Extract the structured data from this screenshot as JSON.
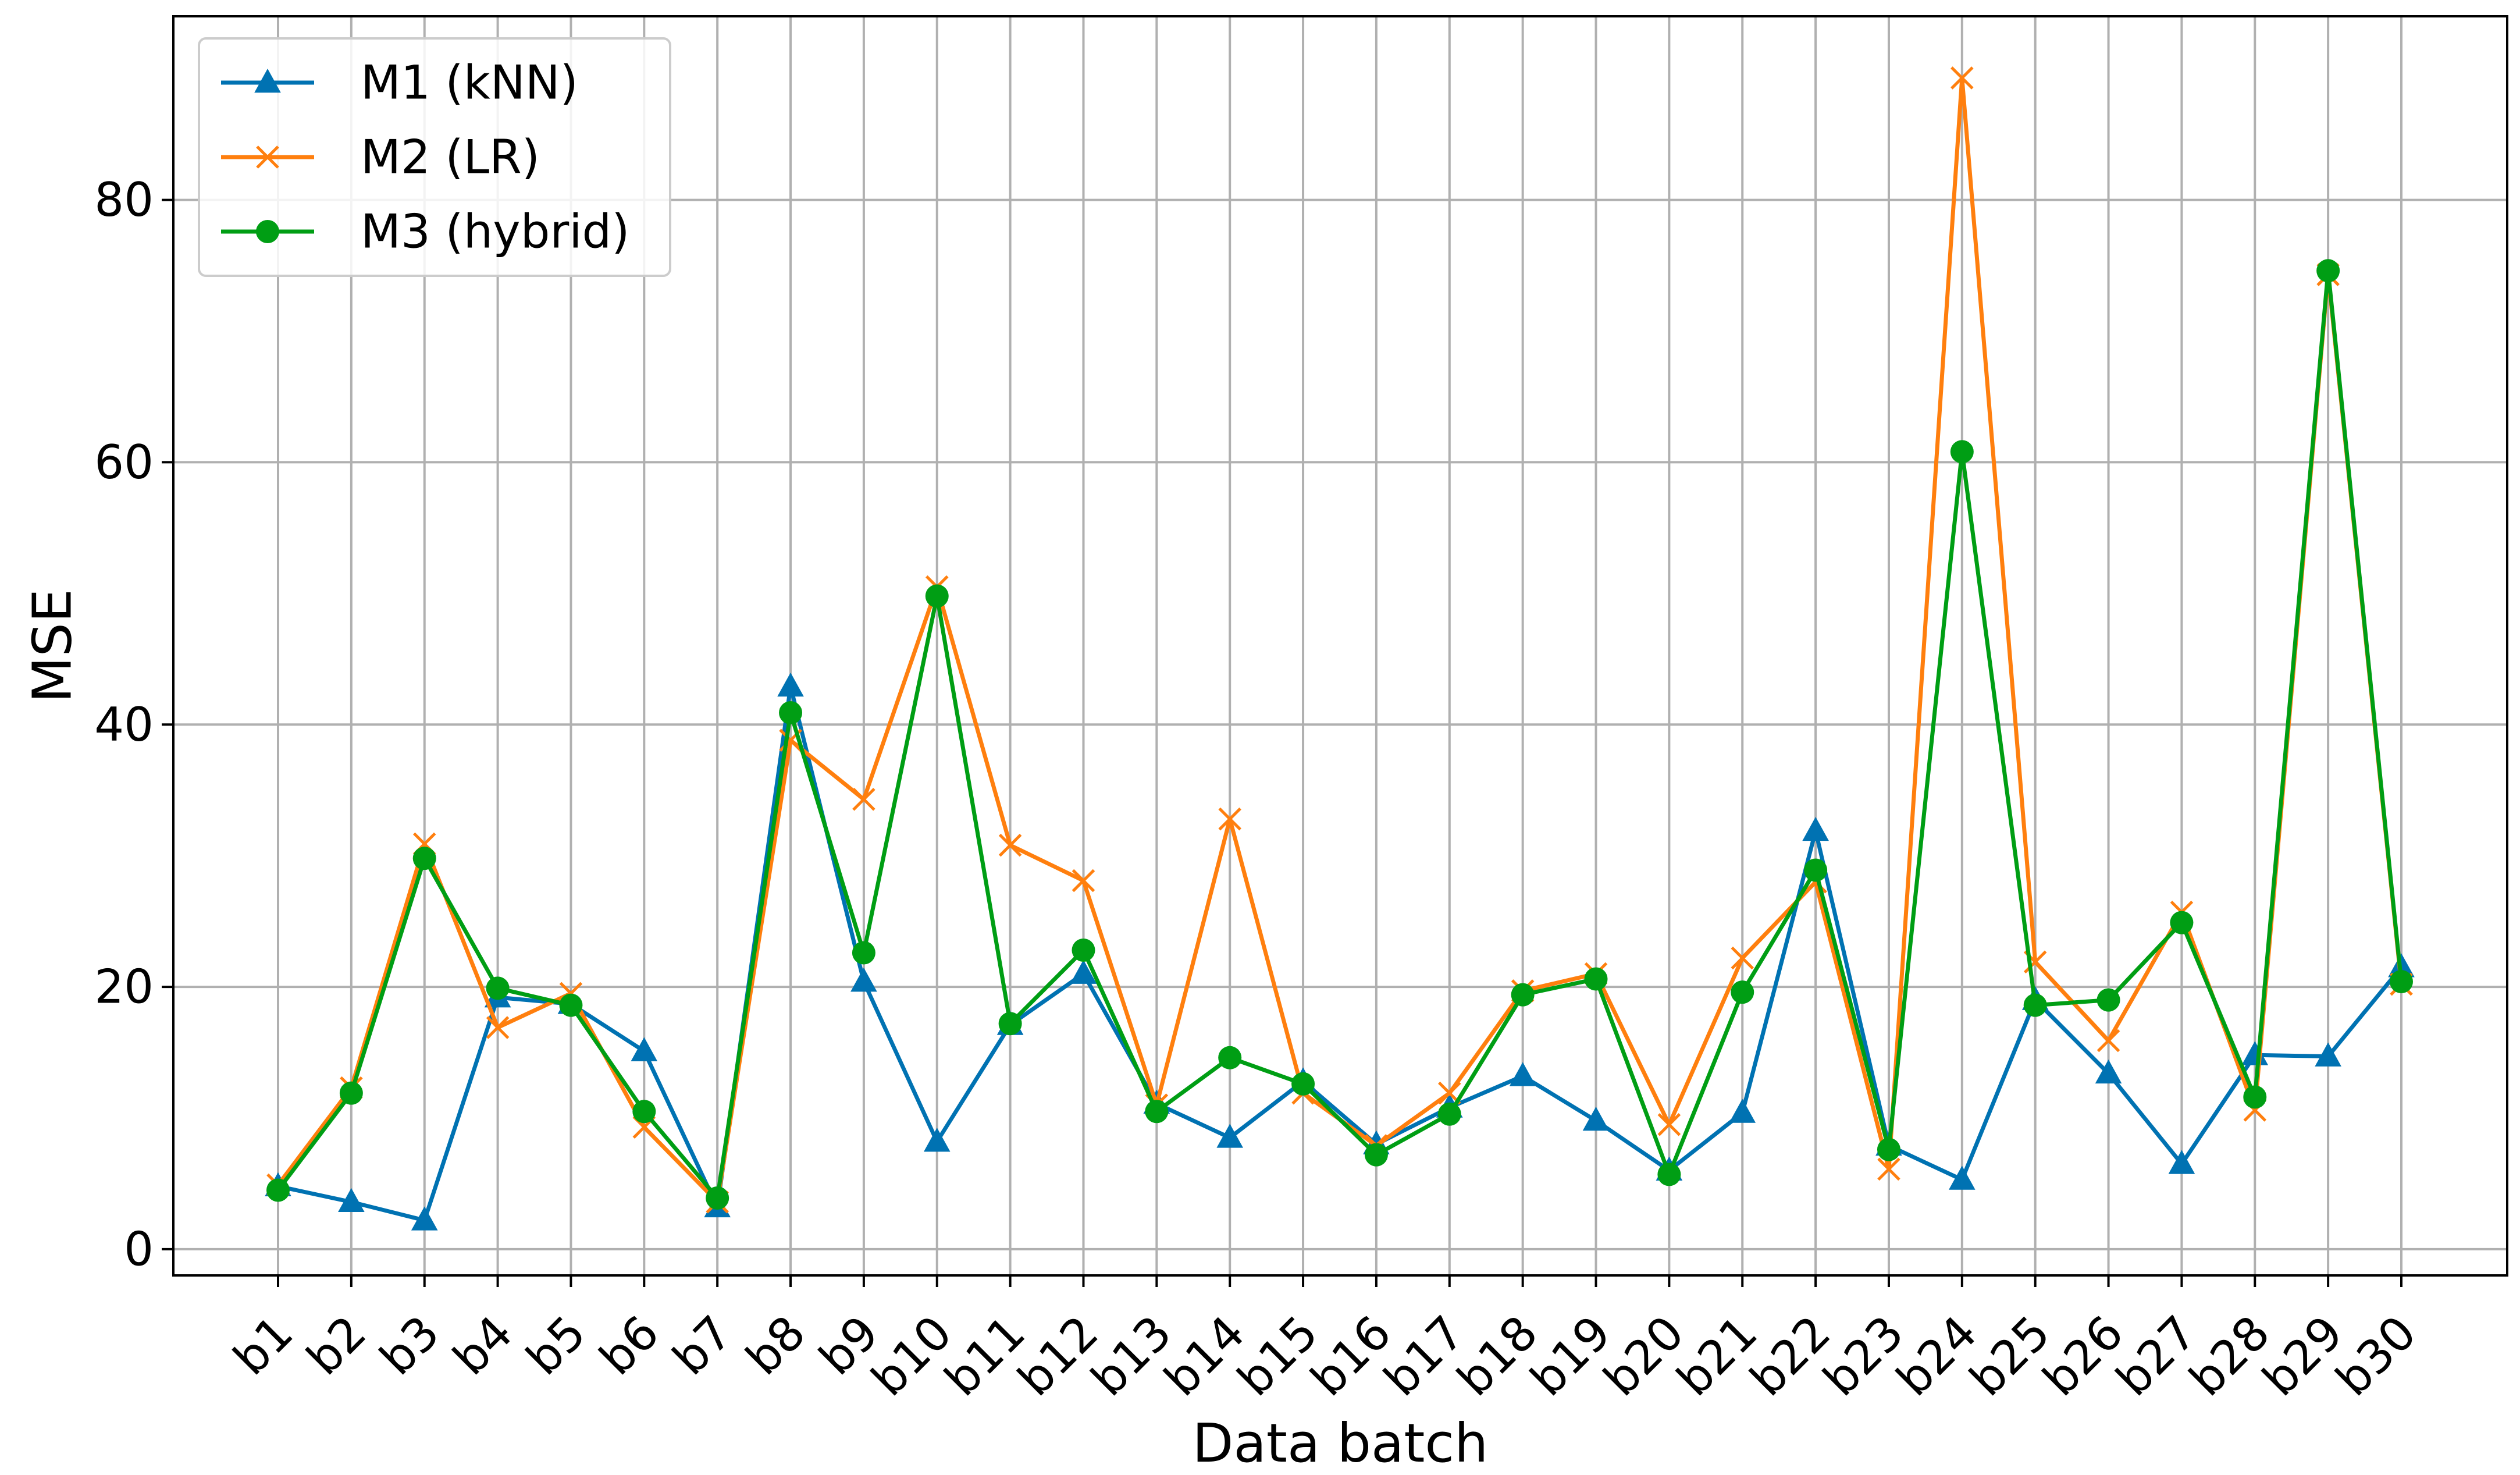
{
  "chart_data": {
    "type": "line",
    "title": "",
    "xlabel": "Data batch",
    "ylabel": "MSE",
    "ylim": [
      -2,
      94
    ],
    "yticks": [
      0,
      20,
      40,
      60,
      80
    ],
    "grid": true,
    "legend_position": "top-left",
    "categories": [
      "b1",
      "b2",
      "b3",
      "b4",
      "b5",
      "b6",
      "b7",
      "b8",
      "b9",
      "b10",
      "b11",
      "b12",
      "b13",
      "b14",
      "b15",
      "b16",
      "b17",
      "b18",
      "b19",
      "b20",
      "b21",
      "b22",
      "b23",
      "b24",
      "b25",
      "b26",
      "b27",
      "b28",
      "b29",
      "b30"
    ],
    "series": [
      {
        "name": "M1 (kNN)",
        "color": "#0072b2",
        "marker": "triangle",
        "values": [
          4.8,
          3.6,
          2.2,
          19.2,
          18.7,
          15.1,
          3.2,
          42.9,
          20.4,
          8.2,
          17.1,
          21.0,
          11.1,
          8.5,
          12.8,
          8.0,
          10.8,
          13.2,
          9.8,
          6.0,
          10.4,
          31.9,
          7.9,
          5.3,
          19.0,
          13.4,
          6.5,
          14.8,
          14.7,
          21.5
        ]
      },
      {
        "name": "M2 (LR)",
        "color": "#ff7f0e",
        "marker": "x",
        "values": [
          4.9,
          12.3,
          30.9,
          16.9,
          19.5,
          9.3,
          3.6,
          38.8,
          34.3,
          50.5,
          30.8,
          28.1,
          11.0,
          32.8,
          11.9,
          7.9,
          11.9,
          19.7,
          21.0,
          9.5,
          22.2,
          28.0,
          6.1,
          89.3,
          21.9,
          15.9,
          25.7,
          10.6,
          74.3,
          20.2
        ]
      },
      {
        "name": "M3 (hybrid)",
        "color": "#009e14",
        "marker": "circle",
        "values": [
          4.5,
          11.9,
          29.8,
          19.9,
          18.6,
          10.5,
          3.9,
          40.9,
          22.6,
          49.8,
          17.2,
          22.8,
          10.5,
          14.6,
          12.6,
          7.2,
          10.3,
          19.4,
          20.6,
          5.7,
          19.6,
          28.9,
          7.6,
          60.8,
          18.6,
          19.0,
          24.9,
          11.6,
          74.6,
          20.4
        ]
      }
    ]
  }
}
